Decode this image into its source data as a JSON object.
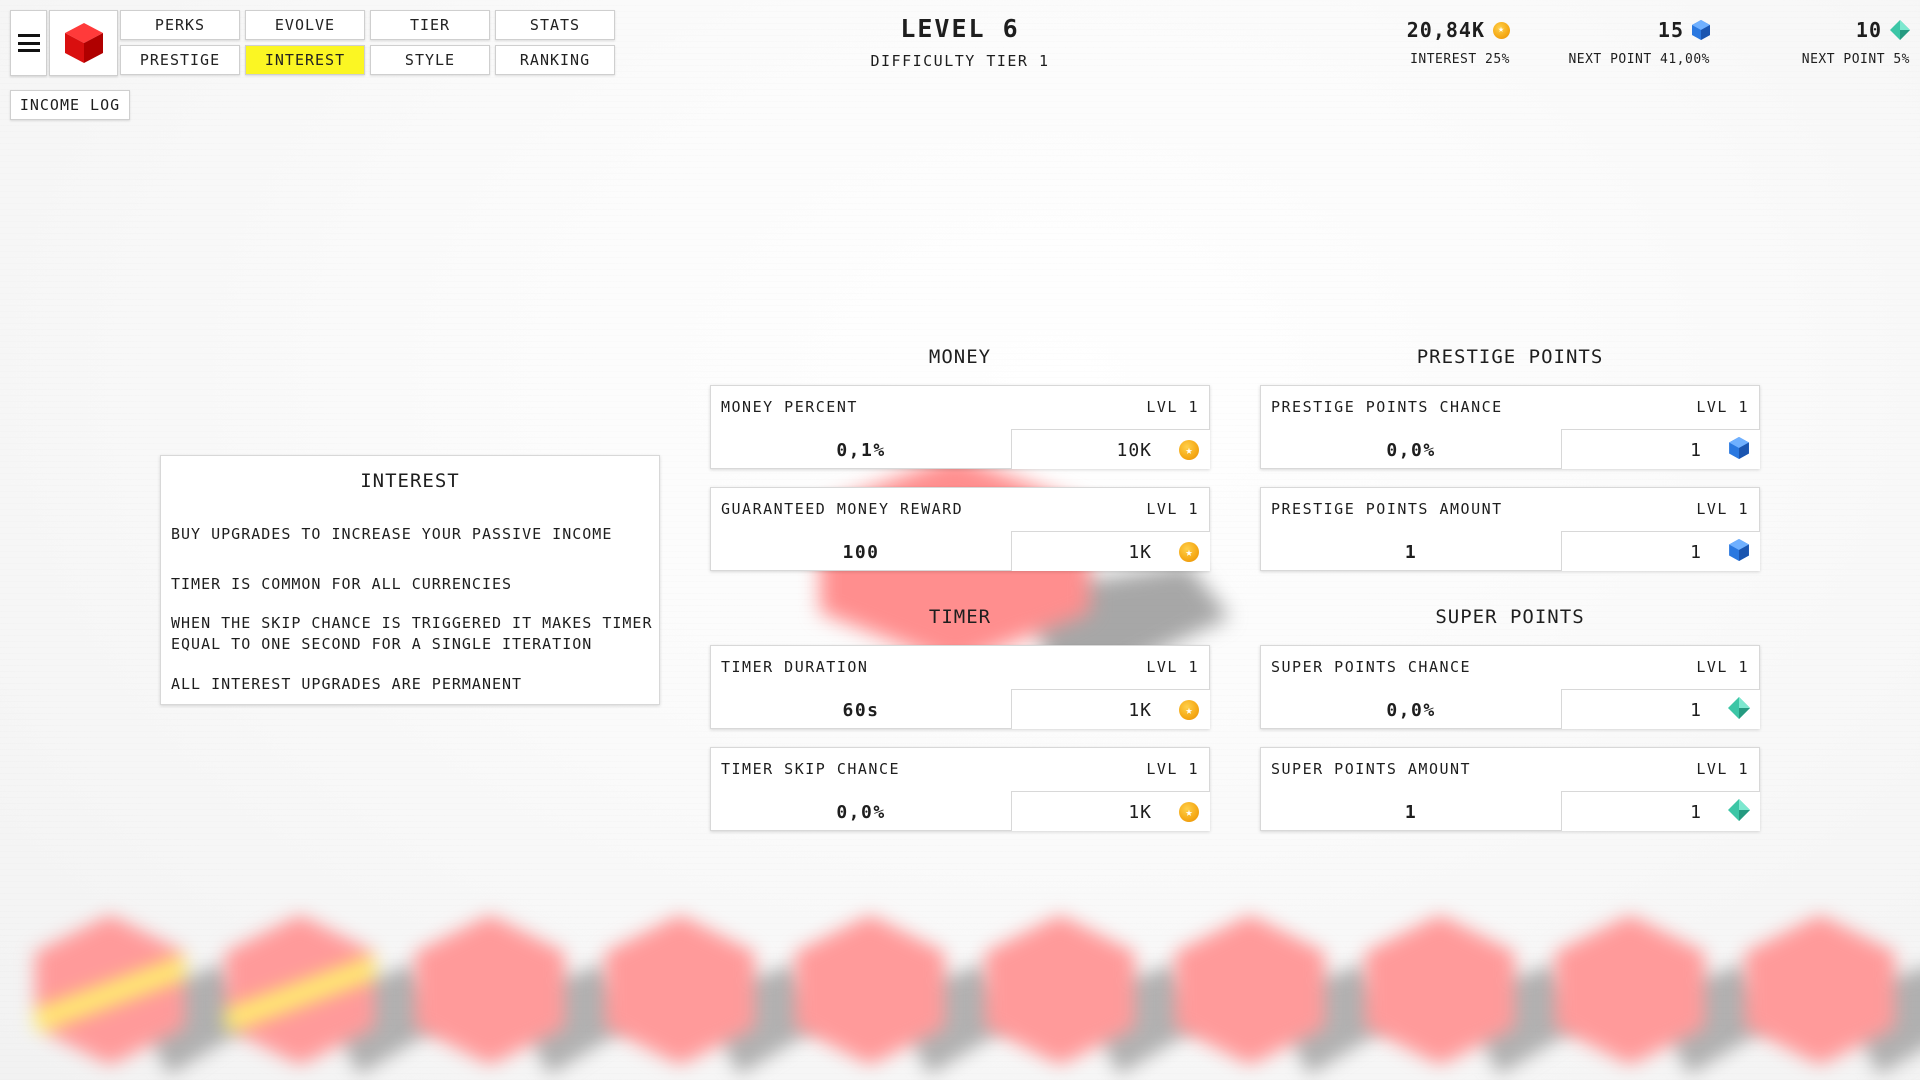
{
  "nav": {
    "menu_icon": "hamburger-icon",
    "logo_icon": "red-cube-icon",
    "tabs_row1": [
      "PERKS",
      "EVOLVE",
      "TIER",
      "STATS"
    ],
    "tabs_row2": [
      "PRESTIGE",
      "INTEREST",
      "STYLE",
      "RANKING"
    ],
    "active_tab": "INTEREST",
    "income_log": "INCOME LOG"
  },
  "header": {
    "level": "LEVEL 6",
    "difficulty": "DIFFICULTY TIER 1"
  },
  "currencies": {
    "money": {
      "value": "20,84K",
      "label": "INTEREST 25%",
      "icon": "coin-icon"
    },
    "prestige": {
      "value": "15",
      "label": "NEXT POINT 41,00%",
      "icon": "blue-gem-icon"
    },
    "super": {
      "value": "10",
      "label": "NEXT POINT 5%",
      "icon": "green-diamond-icon"
    }
  },
  "info": {
    "title": "INTEREST",
    "p1": "BUY UPGRADES TO INCREASE YOUR PASSIVE INCOME",
    "p2": "TIMER IS COMMON FOR ALL CURRENCIES",
    "p3": "WHEN THE SKIP CHANCE IS TRIGGERED IT MAKES TIMER EQUAL TO ONE SECOND FOR A SINGLE ITERATION",
    "p4": "ALL INTEREST UPGRADES ARE PERMANENT"
  },
  "sections": {
    "money": {
      "title": "MONEY",
      "cards": [
        {
          "name": "MONEY PERCENT",
          "lvl": "LVL 1",
          "value": "0,1%",
          "cost": "10K",
          "icon": "coin-icon"
        },
        {
          "name": "GUARANTEED MONEY REWARD",
          "lvl": "LVL 1",
          "value": "100",
          "cost": "1K",
          "icon": "coin-icon"
        }
      ]
    },
    "timer": {
      "title": "TIMER",
      "cards": [
        {
          "name": "TIMER DURATION",
          "lvl": "LVL 1",
          "value": "60s",
          "cost": "1K",
          "icon": "coin-icon"
        },
        {
          "name": "TIMER SKIP CHANCE",
          "lvl": "LVL 1",
          "value": "0,0%",
          "cost": "1K",
          "icon": "coin-icon"
        }
      ]
    },
    "prestige": {
      "title": "PRESTIGE POINTS",
      "cards": [
        {
          "name": "PRESTIGE POINTS CHANCE",
          "lvl": "LVL 1",
          "value": "0,0%",
          "cost": "1",
          "icon": "blue-gem-icon"
        },
        {
          "name": "PRESTIGE POINTS AMOUNT",
          "lvl": "LVL 1",
          "value": "1",
          "cost": "1",
          "icon": "blue-gem-icon"
        }
      ]
    },
    "super": {
      "title": "SUPER POINTS",
      "cards": [
        {
          "name": "SUPER POINTS CHANCE",
          "lvl": "LVL 1",
          "value": "0,0%",
          "cost": "1",
          "icon": "green-diamond-icon"
        },
        {
          "name": "SUPER POINTS AMOUNT",
          "lvl": "LVL 1",
          "value": "1",
          "cost": "1",
          "icon": "green-diamond-icon"
        }
      ]
    }
  },
  "colors": {
    "active_tab": "#fbf623",
    "cube": "#ff9a9a",
    "coin": "#f5a916",
    "gem": "#2a78e0",
    "diamond": "#3cc6a6"
  }
}
